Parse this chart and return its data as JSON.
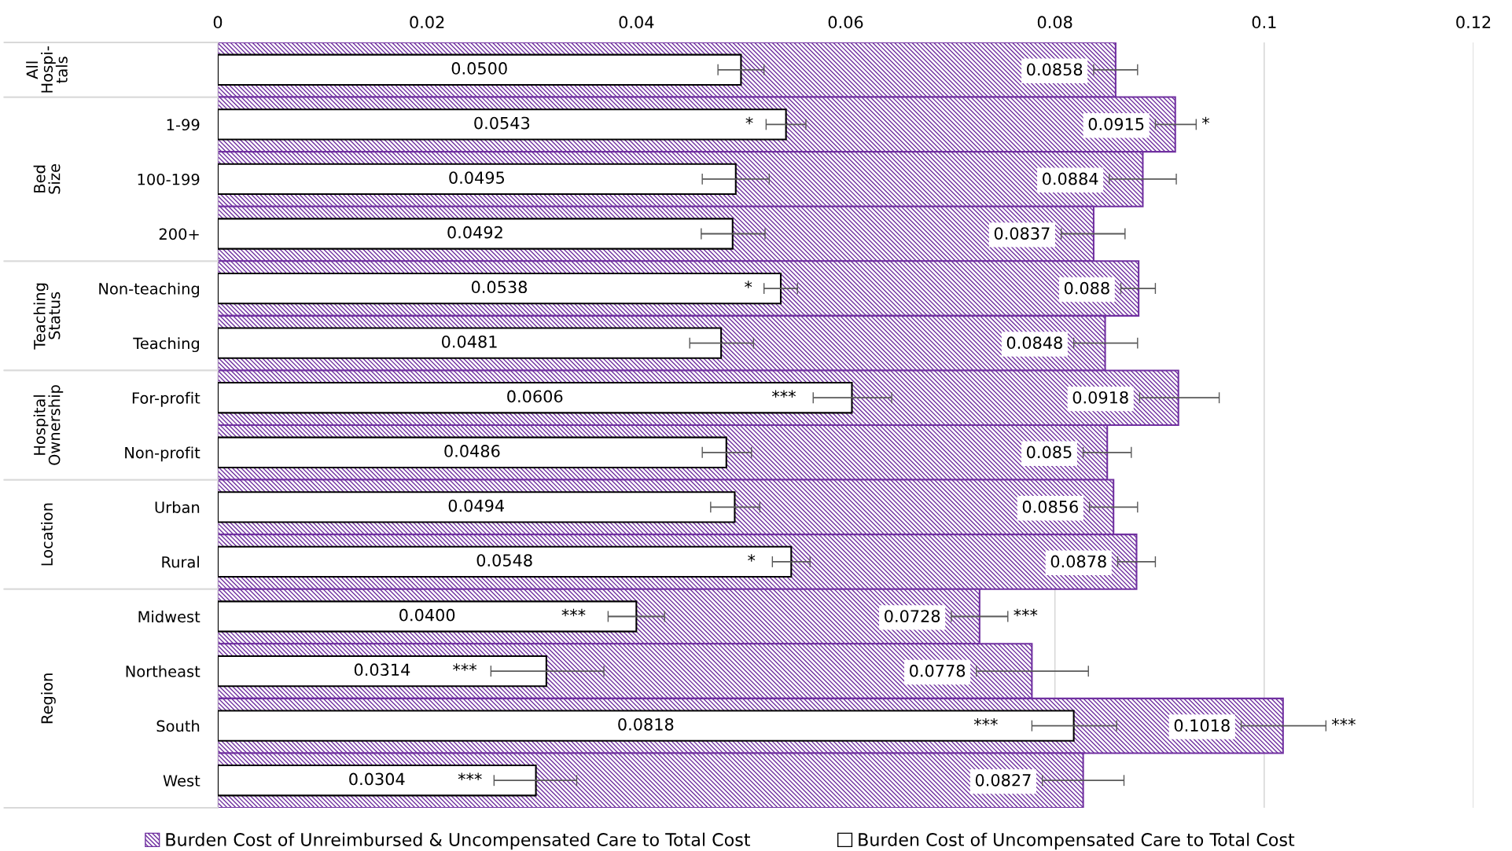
{
  "chart_data": {
    "type": "bar",
    "orientation": "horizontal",
    "categories": [
      null,
      "1-99",
      "100-199",
      "200+",
      "Non-teaching",
      "Teaching",
      "For-profit",
      "Non-profit",
      "Urban",
      "Rural",
      "Midwest",
      "Northeast",
      "South",
      "West"
    ],
    "series": [
      {
        "name": "Burden Cost of Unreimbursed & Uncompensated Care to Total Cost",
        "color": "#7030a0",
        "values": [
          0.0858,
          0.0915,
          0.0884,
          0.0837,
          0.088,
          0.0848,
          0.0918,
          0.085,
          0.0856,
          0.0878,
          0.0728,
          0.0778,
          0.1018,
          0.0827
        ],
        "value_labels": [
          "0.0858",
          "0.0915",
          "0.0884",
          "0.0837",
          "0.088",
          "0.0848",
          "0.0918",
          "0.085",
          "0.0856",
          "0.0878",
          "0.0728",
          "0.0778",
          "0.1018",
          "0.0827"
        ],
        "errors": [
          [
            0.0837,
            0.0879
          ],
          [
            0.0896,
            0.0935
          ],
          [
            0.0852,
            0.0916
          ],
          [
            0.0806,
            0.0867
          ],
          [
            0.0863,
            0.0896
          ],
          [
            0.0818,
            0.0879
          ],
          [
            0.0881,
            0.0957
          ],
          [
            0.0827,
            0.0873
          ],
          [
            0.0833,
            0.0879
          ],
          [
            0.086,
            0.0896
          ],
          [
            0.0701,
            0.0755
          ],
          [
            0.0725,
            0.0832
          ],
          [
            0.0978,
            0.1059
          ],
          [
            0.0788,
            0.0866
          ]
        ]
      },
      {
        "name": "Burden Cost of Uncompensated Care to Total Cost",
        "color": "#ffffff",
        "values": [
          0.05,
          0.0543,
          0.0495,
          0.0492,
          0.0538,
          0.0481,
          0.0606,
          0.0486,
          0.0494,
          0.0548,
          0.04,
          0.0314,
          0.0818,
          0.0304
        ],
        "value_labels": [
          "0.0500",
          "0.0543",
          "0.0495",
          "0.0492",
          "0.0538",
          "0.0481",
          "0.0606",
          "0.0486",
          "0.0494",
          "0.0548",
          "0.0400",
          "0.0314",
          "0.0818",
          "0.0304"
        ],
        "errors": [
          [
            0.0478,
            0.0522
          ],
          [
            0.0524,
            0.0562
          ],
          [
            0.0463,
            0.0527
          ],
          [
            0.0462,
            0.0523
          ],
          [
            0.0522,
            0.0554
          ],
          [
            0.0451,
            0.0512
          ],
          [
            0.0569,
            0.0644
          ],
          [
            0.0463,
            0.051
          ],
          [
            0.0471,
            0.0518
          ],
          [
            0.053,
            0.0566
          ],
          [
            0.0373,
            0.0427
          ],
          [
            0.0261,
            0.0369
          ],
          [
            0.0778,
            0.0859
          ],
          [
            0.0264,
            0.0343
          ]
        ]
      }
    ],
    "xlim": [
      0,
      0.12
    ],
    "xticks": [
      0,
      0.02,
      0.04,
      0.06,
      0.08,
      0.1,
      0.12
    ],
    "grid": "x",
    "legend": "bottom",
    "annotations": [
      "All Hospi-tals",
      "Bed Size",
      "Teaching Status",
      "Hospital Ownership",
      "Location",
      "Region",
      {
        "text": "*",
        "x": 0.0508,
        "y": "1-99"
      },
      {
        "text": "*",
        "x": 0.0915,
        "y": "1-99"
      },
      {
        "text": "*",
        "x": 0.0507,
        "y": "Non-teaching"
      },
      {
        "text": "***",
        "x": 0.0541,
        "y": "For-profit"
      },
      {
        "text": "*",
        "x": 0.051,
        "y": "Rural"
      },
      {
        "text": "***",
        "x": 0.034,
        "y": "Midwest"
      },
      {
        "text": "***",
        "x": 0.0728,
        "y": "Midwest"
      },
      {
        "text": "***",
        "x": 0.0236,
        "y": "Northeast"
      },
      {
        "text": "***",
        "x": 0.0734,
        "y": "South"
      },
      "***",
      {
        "text": "***",
        "x": 0.0241,
        "y": "West"
      }
    ]
  }
}
